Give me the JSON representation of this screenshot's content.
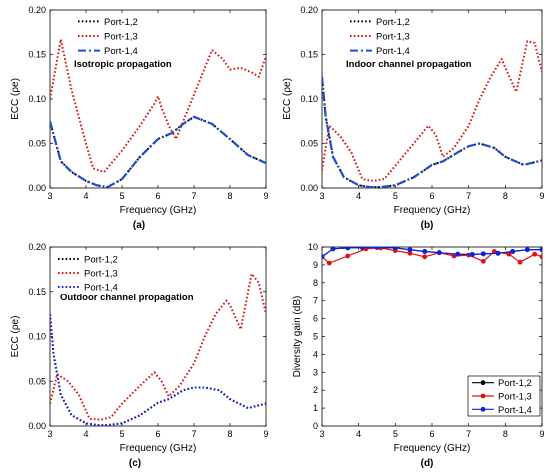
{
  "colors": {
    "port12": "#000000",
    "port13": "#e01010",
    "port14": "#1020e0",
    "port14_ecc": "#1f4fd0"
  },
  "chart_data": [
    {
      "type": "line",
      "panel": "(a)",
      "inset_label": "Isotropic propagation",
      "xlabel": "Frequency (GHz)",
      "ylabel": "ECC (ρe)",
      "xlim": [
        3,
        9
      ],
      "ylim": [
        0,
        0.2
      ],
      "xticks": [
        "3",
        "4",
        "5",
        "6",
        "7",
        "8",
        "9"
      ],
      "yticks": [
        "0.00",
        "0.05",
        "0.10",
        "0.15",
        "0.20"
      ],
      "legend": "top-left",
      "series": [
        {
          "name": "Port-1,2",
          "style": "dotted",
          "color": "#000000",
          "x": [
            3,
            3.3,
            3.6,
            4,
            4.3,
            4.6,
            5,
            5.5,
            6,
            6.4,
            6.7,
            7,
            7.5,
            8,
            8.5,
            9
          ],
          "y": [
            0.075,
            0.03,
            0.018,
            0.008,
            0.003,
            0.001,
            0.01,
            0.035,
            0.055,
            0.062,
            0.072,
            0.08,
            0.072,
            0.055,
            0.037,
            0.028
          ]
        },
        {
          "name": "Port-1,3",
          "style": "dotted",
          "color": "#e01010",
          "x": [
            3,
            3.3,
            3.6,
            4,
            4.2,
            4.5,
            5,
            5.5,
            5.9,
            6,
            6.1,
            6.3,
            6.5,
            6.8,
            7.1,
            7.5,
            7.8,
            8,
            8.3,
            8.6,
            8.8,
            9
          ],
          "y": [
            0.1,
            0.167,
            0.11,
            0.05,
            0.022,
            0.018,
            0.042,
            0.07,
            0.095,
            0.103,
            0.09,
            0.07,
            0.055,
            0.085,
            0.115,
            0.155,
            0.145,
            0.133,
            0.135,
            0.13,
            0.125,
            0.148
          ]
        },
        {
          "name": "Port-1,4",
          "style": "dash-dot",
          "color": "#1f4fd0",
          "x": [
            3,
            3.3,
            3.6,
            4,
            4.3,
            4.6,
            5,
            5.5,
            6,
            6.4,
            6.7,
            7,
            7.5,
            8,
            8.5,
            9
          ],
          "y": [
            0.075,
            0.03,
            0.018,
            0.008,
            0.003,
            0.001,
            0.01,
            0.035,
            0.055,
            0.062,
            0.072,
            0.08,
            0.072,
            0.055,
            0.037,
            0.028
          ]
        }
      ]
    },
    {
      "type": "line",
      "panel": "(b)",
      "inset_label": "Indoor channel propagation",
      "xlabel": "Frequency (GHz)",
      "ylabel": "ECC (ρe)",
      "xlim": [
        3,
        9
      ],
      "ylim": [
        0,
        0.2
      ],
      "xticks": [
        "3",
        "4",
        "5",
        "6",
        "7",
        "8",
        "9"
      ],
      "yticks": [
        "0.00",
        "0.05",
        "0.10",
        "0.15",
        "0.20"
      ],
      "legend": "top-left",
      "series": [
        {
          "name": "Port-1,2",
          "style": "dotted",
          "color": "#000000",
          "x": [
            3,
            3.1,
            3.3,
            3.6,
            4,
            4.3,
            4.6,
            5,
            5.5,
            6,
            6.3,
            6.7,
            7,
            7.3,
            7.7,
            8,
            8.5,
            9
          ],
          "y": [
            0.125,
            0.08,
            0.035,
            0.012,
            0.003,
            0.001,
            0.001,
            0.003,
            0.012,
            0.026,
            0.03,
            0.04,
            0.047,
            0.05,
            0.045,
            0.035,
            0.026,
            0.031
          ]
        },
        {
          "name": "Port-1,3",
          "style": "dotted",
          "color": "#e01010",
          "x": [
            3,
            3.2,
            3.5,
            3.8,
            4.1,
            4.4,
            4.7,
            5,
            5.5,
            5.9,
            6.1,
            6.3,
            6.6,
            7,
            7.3,
            7.6,
            7.9,
            8,
            8.3,
            8.6,
            8.8,
            9
          ],
          "y": [
            0.02,
            0.07,
            0.058,
            0.04,
            0.01,
            0.008,
            0.01,
            0.025,
            0.05,
            0.07,
            0.06,
            0.035,
            0.045,
            0.07,
            0.1,
            0.125,
            0.145,
            0.135,
            0.108,
            0.165,
            0.163,
            0.13
          ]
        },
        {
          "name": "Port-1,4",
          "style": "dash-dot",
          "color": "#1f4fd0",
          "x": [
            3,
            3.1,
            3.3,
            3.6,
            4,
            4.3,
            4.6,
            5,
            5.5,
            6,
            6.3,
            6.7,
            7,
            7.3,
            7.7,
            8,
            8.5,
            9
          ],
          "y": [
            0.125,
            0.08,
            0.035,
            0.012,
            0.003,
            0.001,
            0.001,
            0.003,
            0.012,
            0.026,
            0.03,
            0.04,
            0.047,
            0.05,
            0.045,
            0.035,
            0.026,
            0.031
          ]
        }
      ]
    },
    {
      "type": "line",
      "panel": "(c)",
      "inset_label": "Outdoor channel propagation",
      "xlabel": "Frequency (GHz)",
      "ylabel": "ECC (ρe)",
      "xlim": [
        3,
        9
      ],
      "ylim": [
        0,
        0.2
      ],
      "xticks": [
        "3",
        "4",
        "5",
        "6",
        "7",
        "8",
        "9"
      ],
      "yticks": [
        "0.00",
        "0.05",
        "0.10",
        "0.15",
        "0.20"
      ],
      "legend": "top-left",
      "series": [
        {
          "name": "Port-1,2",
          "style": "dotted",
          "color": "#000000",
          "x": [
            3,
            3.1,
            3.3,
            3.6,
            4,
            4.3,
            4.6,
            5,
            5.5,
            6,
            6.3,
            6.7,
            7,
            7.3,
            7.7,
            8,
            8.5,
            9
          ],
          "y": [
            0.125,
            0.08,
            0.035,
            0.012,
            0.003,
            0.001,
            0.001,
            0.003,
            0.012,
            0.026,
            0.03,
            0.04,
            0.043,
            0.043,
            0.04,
            0.03,
            0.02,
            0.025
          ]
        },
        {
          "name": "Port-1,3",
          "style": "dotted",
          "color": "#e01010",
          "x": [
            3,
            3.2,
            3.5,
            3.8,
            4.1,
            4.4,
            4.7,
            5,
            5.5,
            5.9,
            6.1,
            6.3,
            6.6,
            7,
            7.3,
            7.6,
            7.9,
            8,
            8.3,
            8.6,
            8.8,
            9
          ],
          "y": [
            0.025,
            0.058,
            0.05,
            0.035,
            0.008,
            0.007,
            0.01,
            0.025,
            0.045,
            0.06,
            0.05,
            0.033,
            0.045,
            0.07,
            0.1,
            0.125,
            0.14,
            0.135,
            0.108,
            0.17,
            0.16,
            0.125
          ]
        },
        {
          "name": "Port-1,4",
          "style": "dotted",
          "color": "#1020e0",
          "x": [
            3,
            3.1,
            3.3,
            3.6,
            4,
            4.3,
            4.6,
            5,
            5.5,
            6,
            6.3,
            6.7,
            7,
            7.3,
            7.7,
            8,
            8.5,
            9
          ],
          "y": [
            0.125,
            0.08,
            0.035,
            0.012,
            0.003,
            0.001,
            0.001,
            0.003,
            0.012,
            0.026,
            0.03,
            0.04,
            0.043,
            0.043,
            0.04,
            0.03,
            0.02,
            0.025
          ]
        }
      ]
    },
    {
      "type": "line",
      "panel": "(d)",
      "inset_label": "",
      "xlabel": "Frequency (GHz)",
      "ylabel": "Diversity gain (dB)",
      "xlim": [
        3,
        9
      ],
      "ylim": [
        0,
        10
      ],
      "xticks": [
        "3",
        "4",
        "5",
        "6",
        "7",
        "8",
        "9"
      ],
      "yticks": [
        "0",
        "1",
        "2",
        "3",
        "4",
        "5",
        "6",
        "7",
        "8",
        "9",
        "10"
      ],
      "legend": "bottom-right",
      "series": [
        {
          "name": "Port-1,2",
          "style": "solid-marker",
          "color": "#000000",
          "x": [
            3,
            3.3,
            3.7,
            4.1,
            4.5,
            5,
            5.4,
            5.8,
            6.2,
            6.7,
            7.1,
            7.4,
            7.8,
            8.2,
            8.6,
            9
          ],
          "y": [
            9.45,
            9.9,
            9.95,
            9.97,
            9.98,
            9.95,
            9.85,
            9.75,
            9.68,
            9.6,
            9.58,
            9.62,
            9.65,
            9.75,
            9.85,
            9.85
          ]
        },
        {
          "name": "Port-1,3",
          "style": "solid-marker",
          "color": "#e01010",
          "x": [
            3,
            3.2,
            3.7,
            4.2,
            4.6,
            5,
            5.4,
            5.8,
            6.2,
            6.6,
            7,
            7.4,
            7.7,
            8.1,
            8.4,
            8.8,
            9
          ],
          "y": [
            9.45,
            9.1,
            9.5,
            9.9,
            9.95,
            9.8,
            9.65,
            9.45,
            9.68,
            9.5,
            9.55,
            9.2,
            9.75,
            9.6,
            9.15,
            9.6,
            9.45
          ]
        },
        {
          "name": "Port-1,4",
          "style": "solid-marker",
          "color": "#1020e0",
          "x": [
            3,
            3.3,
            3.7,
            4.1,
            4.5,
            5,
            5.4,
            5.8,
            6.2,
            6.7,
            7.1,
            7.4,
            7.8,
            8.2,
            8.6,
            9
          ],
          "y": [
            9.45,
            9.9,
            9.95,
            9.97,
            9.98,
            9.95,
            9.85,
            9.75,
            9.68,
            9.6,
            9.58,
            9.62,
            9.65,
            9.75,
            9.85,
            9.85
          ]
        }
      ]
    }
  ]
}
